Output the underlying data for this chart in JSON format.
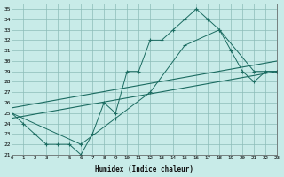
{
  "xlabel": "Humidex (Indice chaleur)",
  "xlim": [
    0,
    23
  ],
  "ylim": [
    21,
    35.5
  ],
  "yticks": [
    21,
    22,
    23,
    24,
    25,
    26,
    27,
    28,
    29,
    30,
    31,
    32,
    33,
    34,
    35
  ],
  "xticks": [
    0,
    1,
    2,
    3,
    4,
    5,
    6,
    7,
    8,
    9,
    10,
    11,
    12,
    13,
    14,
    15,
    16,
    17,
    18,
    19,
    20,
    21,
    22,
    23
  ],
  "bg_color": "#c8ebe8",
  "grid_color": "#8cbcb8",
  "line_color": "#1a6b60",
  "line1_x": [
    0,
    1,
    2,
    3,
    4,
    5,
    6,
    7,
    8,
    9,
    10,
    11,
    12,
    13,
    14,
    15,
    16,
    17,
    18,
    19,
    20,
    21,
    22,
    23
  ],
  "line1_y": [
    25,
    24,
    23,
    22,
    22,
    22,
    21,
    23,
    26,
    25,
    29,
    29,
    32,
    32,
    33,
    34,
    35,
    34,
    33,
    31,
    29,
    28,
    29,
    29
  ],
  "line2_x": [
    0,
    6,
    9,
    12,
    15,
    18,
    21,
    23
  ],
  "line2_y": [
    25,
    22,
    24.5,
    27,
    31.5,
    33,
    29,
    29
  ],
  "trend1_x": [
    0,
    23
  ],
  "trend1_y": [
    24.5,
    29.0
  ],
  "trend2_x": [
    0,
    23
  ],
  "trend2_y": [
    25.5,
    30.0
  ]
}
